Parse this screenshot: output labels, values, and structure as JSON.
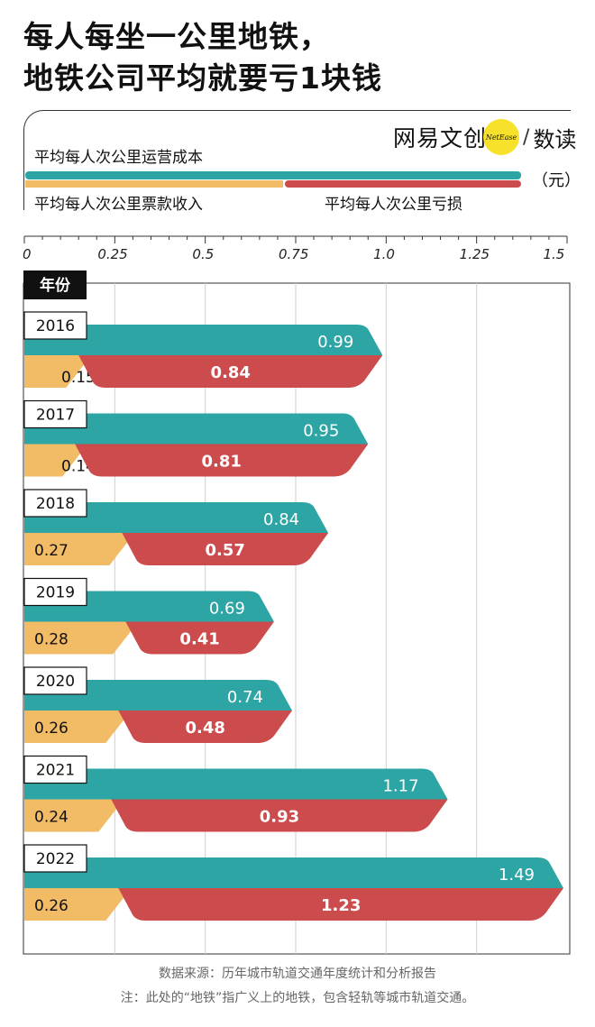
{
  "title": {
    "line1": "每人每坐一公里地铁，",
    "line2": "地铁公司平均就要亏1块钱"
  },
  "brand": {
    "name": "网易文创",
    "dot_text": "NetEase",
    "separator": "/",
    "sub": "数读"
  },
  "legend": {
    "cost": "平均每人次公里运营成本",
    "revenue": "平均每人次公里票款收入",
    "loss": "平均每人次公里亏损",
    "unit": "（元）"
  },
  "source_note": "数据来源：历年城市轨道交通年度统计和分析报告",
  "footnote": "注：此处的“地铁”指广义上的地铁，包含轻轨等城市轨道交通。",
  "chart_data": {
    "type": "bar",
    "y_category_header": "年份",
    "categories": [
      "2016",
      "2017",
      "2018",
      "2019",
      "2020",
      "2021",
      "2022"
    ],
    "xlim": [
      0,
      1.5
    ],
    "x_ticks": [
      "0",
      "0.25",
      "0.5",
      "0.75",
      "1.0",
      "1.25",
      "1.5"
    ],
    "grid": true,
    "series": [
      {
        "name": "平均每人次公里运营成本",
        "color": "#2ea5a5",
        "values": [
          0.99,
          0.95,
          0.84,
          0.69,
          0.74,
          1.17,
          1.49
        ],
        "labels": [
          "0.99",
          "0.95",
          "0.84",
          "0.69",
          "0.74",
          "1.17",
          "1.49"
        ]
      },
      {
        "name": "平均每人次公里票款收入",
        "color": "#f2bb66",
        "values": [
          0.15,
          0.14,
          0.27,
          0.28,
          0.26,
          0.24,
          0.26
        ],
        "labels": [
          "0.15",
          "0.14",
          "0.27",
          "0.28",
          "0.26",
          "0.24",
          "0.26"
        ]
      },
      {
        "name": "平均每人次公里亏损",
        "color": "#cc4b4c",
        "values": [
          0.84,
          0.81,
          0.57,
          0.41,
          0.48,
          0.93,
          1.23
        ],
        "labels": [
          "0.84",
          "0.81",
          "0.57",
          "0.41",
          "0.48",
          "0.93",
          "1.23"
        ]
      }
    ]
  }
}
